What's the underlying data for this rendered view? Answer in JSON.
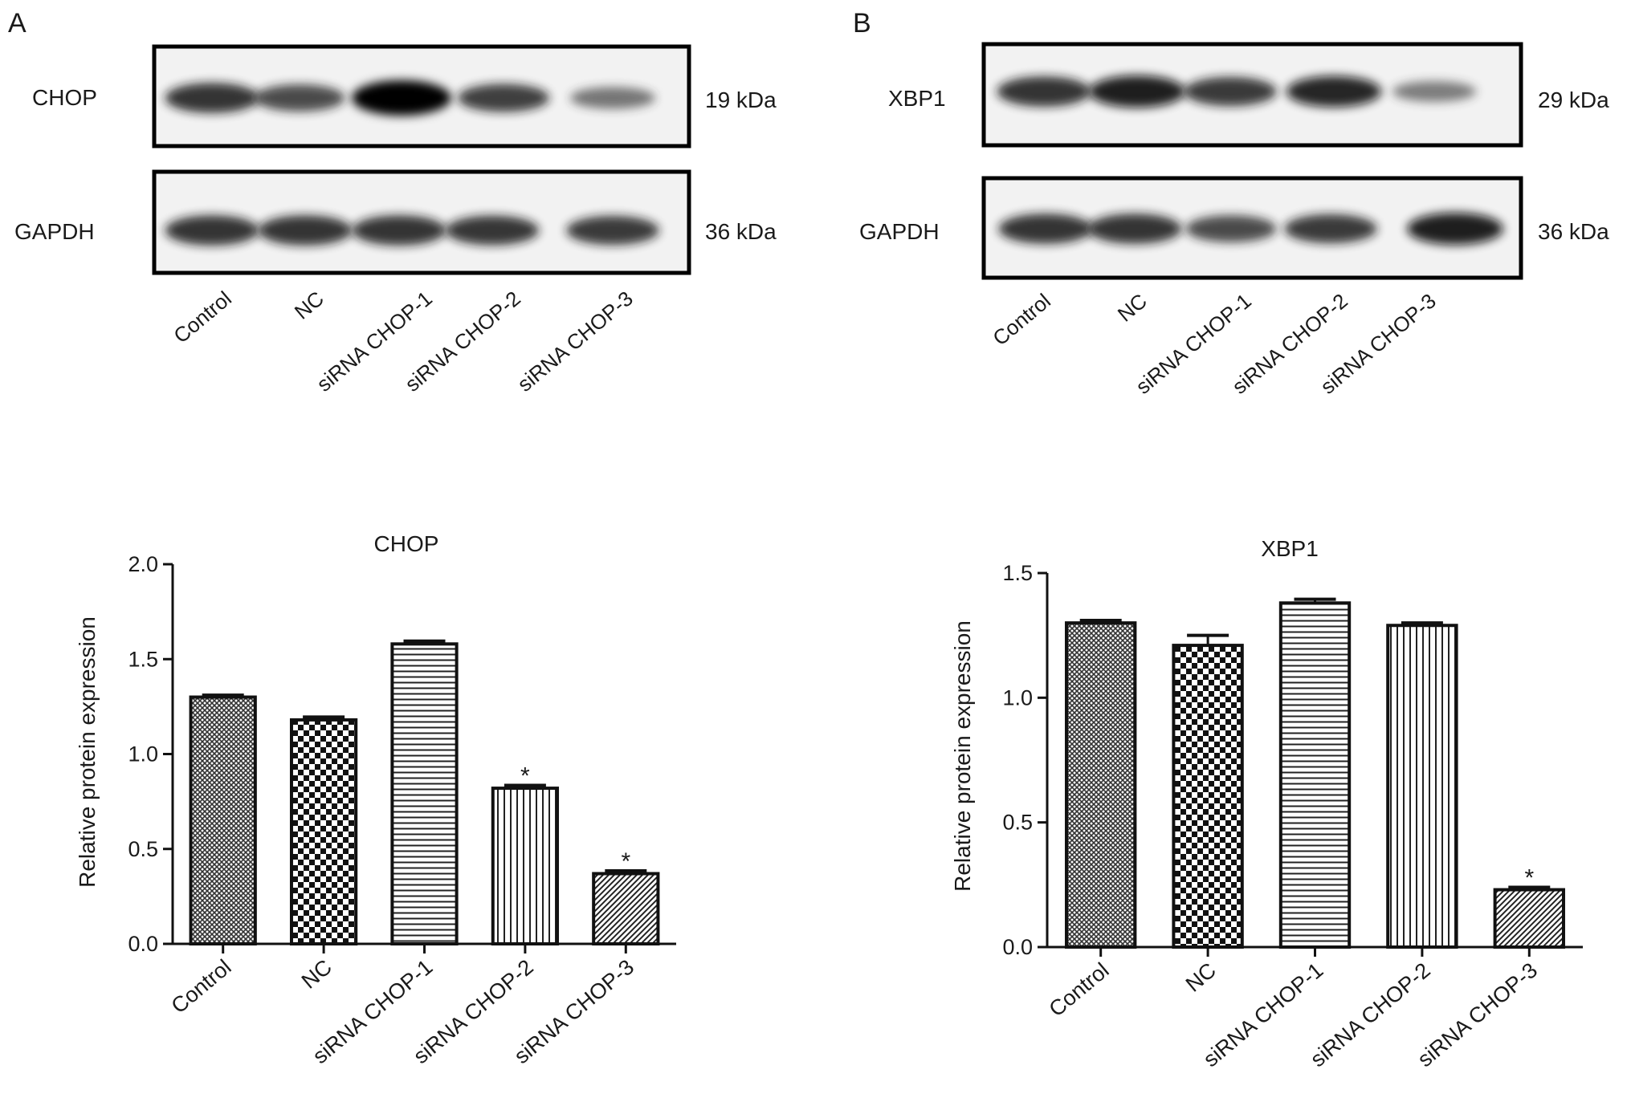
{
  "panels": [
    {
      "letter": "A",
      "blot": {
        "lanes": [
          "Control",
          "NC",
          "siRNA CHOP-1",
          "siRNA CHOP-2",
          "siRNA CHOP-3"
        ],
        "rows": [
          {
            "protein": "CHOP",
            "size": "19 kDa",
            "intensity": [
              0.75,
              0.6,
              1.0,
              0.65,
              0.35
            ]
          },
          {
            "protein": "GAPDH",
            "size": "36 kDa",
            "intensity": [
              0.75,
              0.75,
              0.75,
              0.72,
              0.7
            ]
          }
        ]
      }
    },
    {
      "letter": "B",
      "blot": {
        "lanes": [
          "Control",
          "NC",
          "siRNA CHOP-1",
          "siRNA CHOP-2",
          "siRNA CHOP-3"
        ],
        "rows": [
          {
            "protein": "XBP1",
            "size": "29 kDa",
            "intensity": [
              0.75,
              0.85,
              0.7,
              0.8,
              0.3
            ]
          },
          {
            "protein": "GAPDH",
            "size": "36 kDa",
            "intensity": [
              0.75,
              0.75,
              0.6,
              0.7,
              0.85
            ]
          }
        ]
      }
    }
  ],
  "chart_data": [
    {
      "type": "bar",
      "title": "CHOP",
      "ylabel": "Relative protein expression",
      "categories": [
        "Control",
        "NC",
        "siRNA CHOP-1",
        "siRNA CHOP-2",
        "siRNA CHOP-3"
      ],
      "values": [
        1.3,
        1.18,
        1.58,
        0.82,
        0.37
      ],
      "errors": [
        0.01,
        0.015,
        0.015,
        0.015,
        0.015
      ],
      "significance": [
        "",
        "",
        "",
        "*",
        "*"
      ],
      "patterns": [
        "crosshatch",
        "checker",
        "horizontal",
        "vertical",
        "diagonal"
      ],
      "ylim": [
        0,
        2.0
      ],
      "yticks": [
        "0.0",
        "0.5",
        "1.0",
        "1.5",
        "2.0"
      ],
      "grid": false
    },
    {
      "type": "bar",
      "title": "XBP1",
      "ylabel": "Relative protein expression",
      "categories": [
        "Control",
        "NC",
        "siRNA CHOP-1",
        "siRNA CHOP-2",
        "siRNA CHOP-3"
      ],
      "values": [
        1.3,
        1.21,
        1.38,
        1.29,
        0.23
      ],
      "errors": [
        0.01,
        0.04,
        0.015,
        0.01,
        0.01
      ],
      "significance": [
        "",
        "",
        "",
        "",
        "*"
      ],
      "patterns": [
        "crosshatch",
        "checker",
        "horizontal",
        "vertical",
        "diagonal"
      ],
      "ylim": [
        0,
        1.5
      ],
      "yticks": [
        "0.0",
        "0.5",
        "1.0",
        "1.5"
      ],
      "grid": false
    }
  ]
}
